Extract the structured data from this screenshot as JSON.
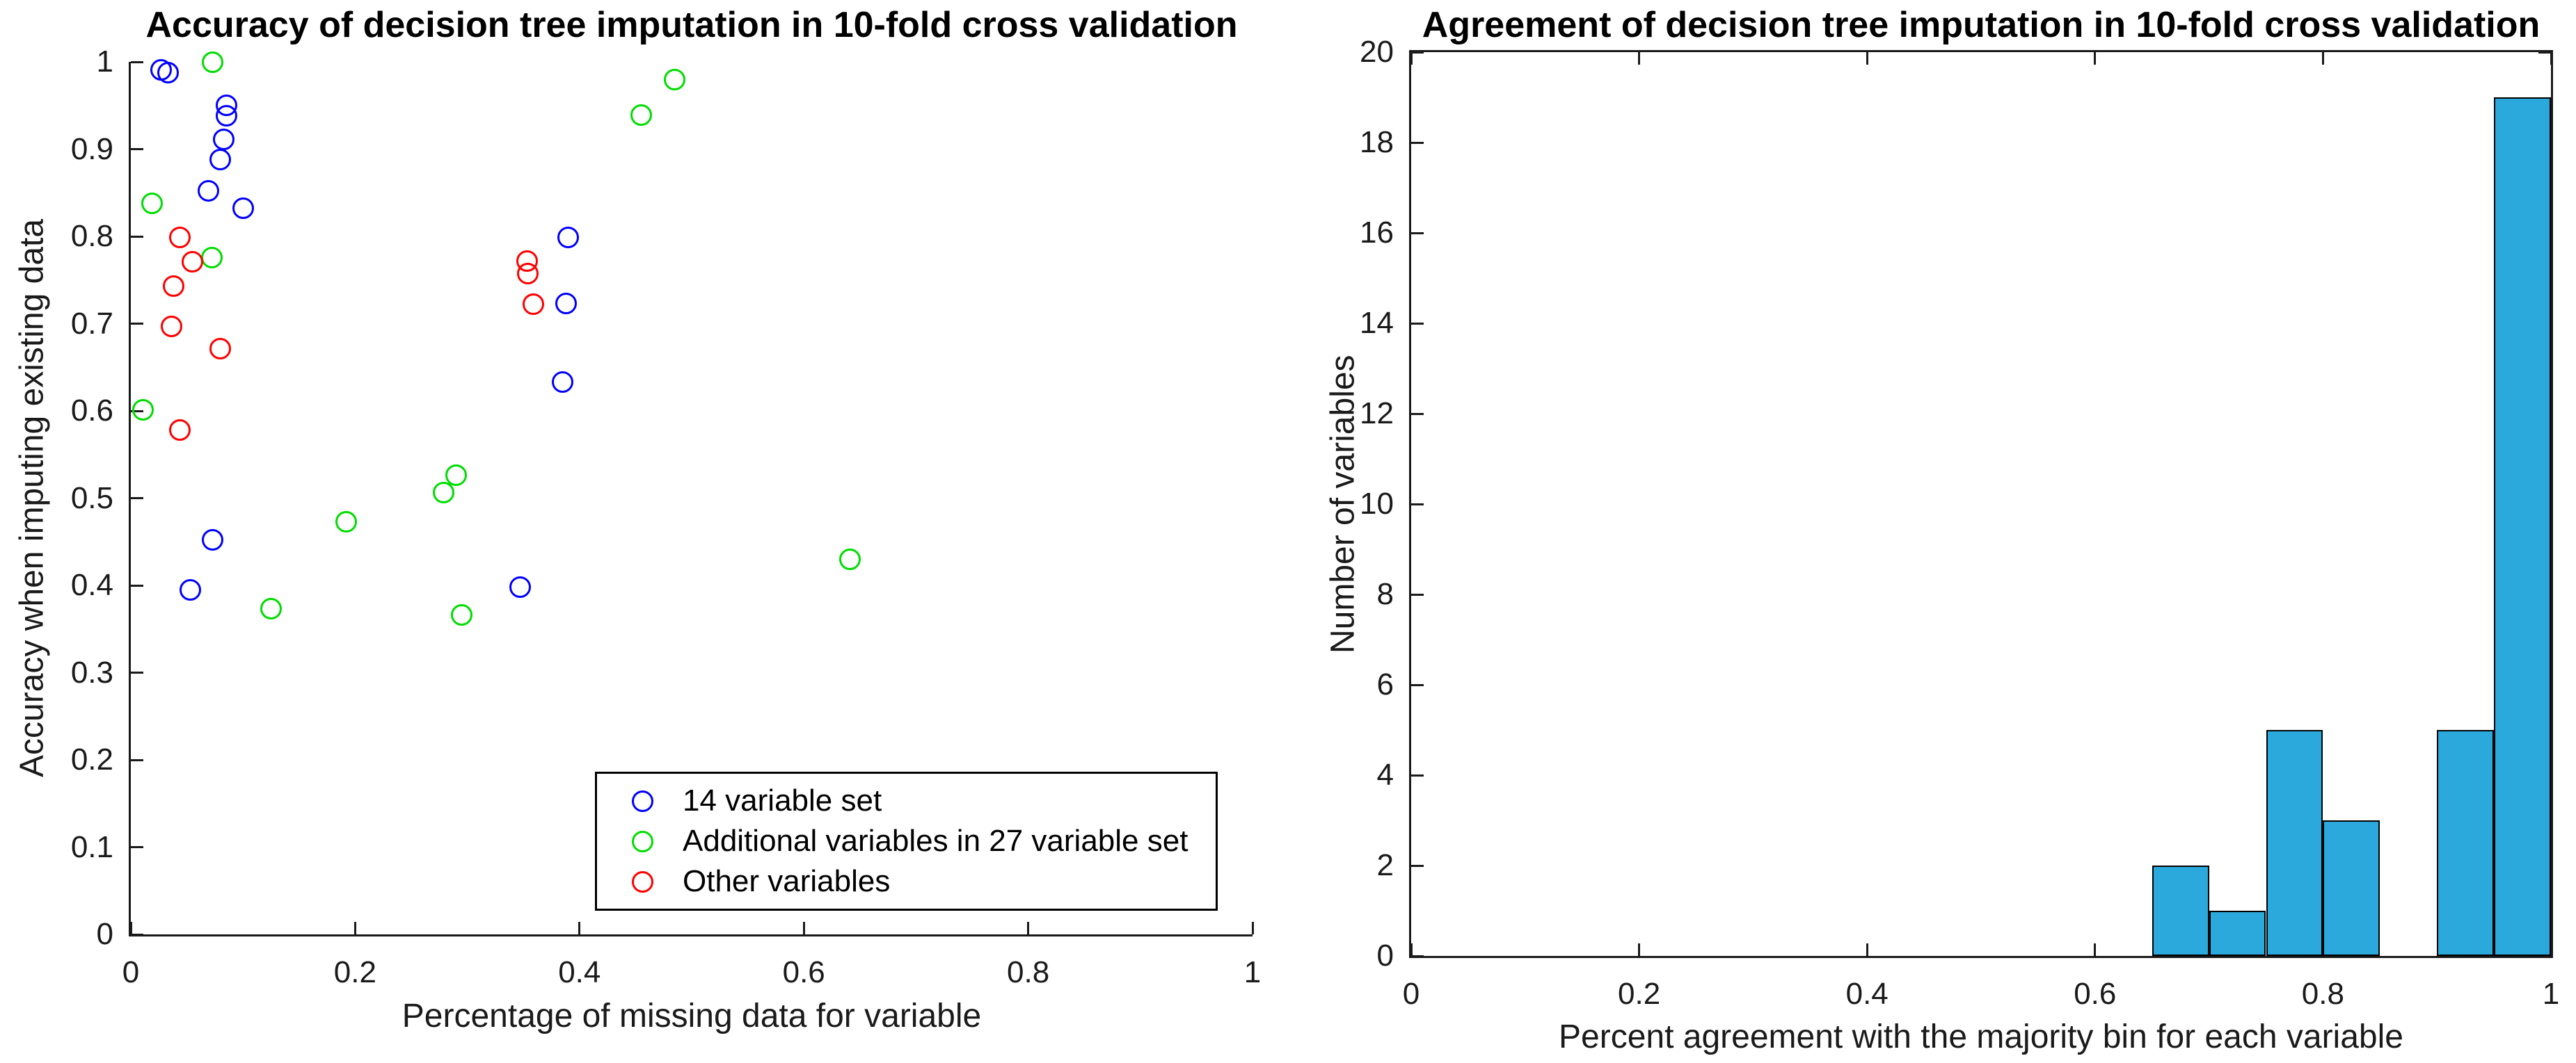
{
  "chart_data": [
    {
      "type": "scatter",
      "title": "Accuracy of decision tree imputation in 10-fold cross validation",
      "xlabel": "Percentage of missing data for variable",
      "ylabel": "Accuracy when imputing existing data",
      "xlim": [
        0,
        1
      ],
      "ylim": [
        0,
        1
      ],
      "grid": false,
      "box": false,
      "xticks": [
        0,
        0.2,
        0.4,
        0.6,
        0.8,
        1
      ],
      "xtick_labels": [
        "0",
        "0.2",
        "0.4",
        "0.6",
        "0.8",
        "1"
      ],
      "yticks": [
        0,
        0.1,
        0.2,
        0.3,
        0.4,
        0.5,
        0.6,
        0.7,
        0.8,
        0.9,
        1
      ],
      "ytick_labels": [
        "0",
        "0.1",
        "0.2",
        "0.3",
        "0.4",
        "0.5",
        "0.6",
        "0.7",
        "0.8",
        "0.9",
        "1"
      ],
      "legend_position": "lower-right-inside",
      "marker_style": "open-circle",
      "series": [
        {
          "name": "14 variable set",
          "color": "#0000ff",
          "points": [
            [
              0.027,
              0.991
            ],
            [
              0.033,
              0.988
            ],
            [
              0.085,
              0.95
            ],
            [
              0.085,
              0.938
            ],
            [
              0.083,
              0.911
            ],
            [
              0.08,
              0.888
            ],
            [
              0.069,
              0.852
            ],
            [
              0.1,
              0.832
            ],
            [
              0.39,
              0.799
            ],
            [
              0.388,
              0.723
            ],
            [
              0.385,
              0.633
            ],
            [
              0.073,
              0.452
            ],
            [
              0.053,
              0.395
            ],
            [
              0.347,
              0.398
            ]
          ]
        },
        {
          "name": "Additional variables in 27 variable set",
          "color": "#00dd00",
          "points": [
            [
              0.073,
              1.0
            ],
            [
              0.019,
              0.838
            ],
            [
              0.072,
              0.776
            ],
            [
              0.011,
              0.601
            ],
            [
              0.485,
              0.98
            ],
            [
              0.455,
              0.939
            ],
            [
              0.125,
              0.373
            ],
            [
              0.192,
              0.473
            ],
            [
              0.279,
              0.506
            ],
            [
              0.29,
              0.526
            ],
            [
              0.295,
              0.366
            ],
            [
              0.641,
              0.43
            ]
          ]
        },
        {
          "name": "Other variables",
          "color": "#ff0000",
          "points": [
            [
              0.044,
              0.799
            ],
            [
              0.055,
              0.771
            ],
            [
              0.038,
              0.743
            ],
            [
              0.036,
              0.697
            ],
            [
              0.08,
              0.671
            ],
            [
              0.044,
              0.578
            ],
            [
              0.353,
              0.772
            ],
            [
              0.354,
              0.757
            ],
            [
              0.359,
              0.722
            ]
          ]
        }
      ]
    },
    {
      "type": "bar",
      "subtype": "histogram",
      "title": "Agreement of decision tree imputation in 10-fold cross validation",
      "xlabel": "Percent agreement with the majority bin for each variable",
      "ylabel": "Number of variables",
      "xlim": [
        0,
        1
      ],
      "ylim": [
        0,
        20
      ],
      "grid": false,
      "box": true,
      "xticks": [
        0,
        0.2,
        0.4,
        0.6,
        0.8,
        1
      ],
      "xtick_labels": [
        "0",
        "0.2",
        "0.4",
        "0.6",
        "0.8",
        "1"
      ],
      "yticks": [
        0,
        2,
        4,
        6,
        8,
        10,
        12,
        14,
        16,
        18,
        20
      ],
      "ytick_labels": [
        "0",
        "2",
        "4",
        "6",
        "8",
        "10",
        "12",
        "14",
        "16",
        "18",
        "20"
      ],
      "bin_edges": [
        0.65,
        0.7,
        0.75,
        0.8,
        0.85,
        0.9,
        0.95,
        1.0
      ],
      "counts": [
        2,
        1,
        5,
        3,
        0,
        5,
        19
      ],
      "bar_color": "#2ca9dc",
      "bar_edge_color": "#000000"
    }
  ]
}
